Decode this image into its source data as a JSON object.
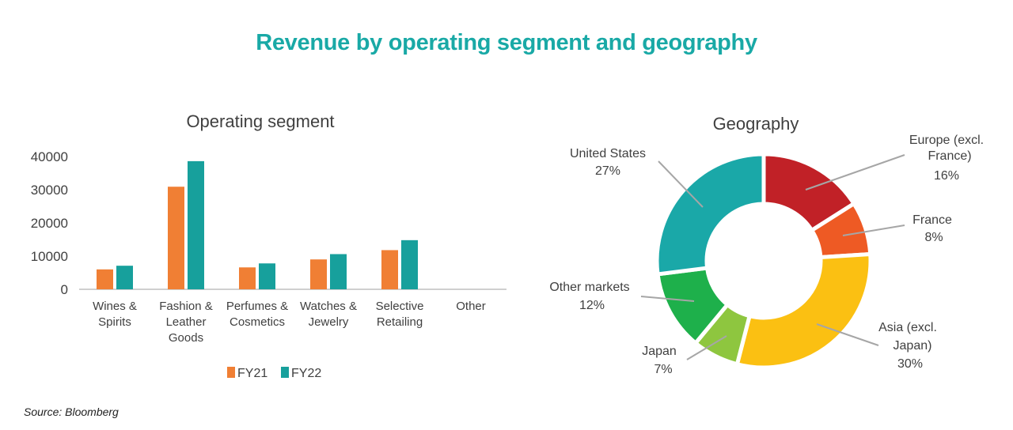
{
  "title": "Revenue by operating segment and geography",
  "source": "Source: Bloomberg",
  "colors": {
    "title": "#19a9a6",
    "fy21": "#f07f34",
    "fy22": "#17a09c"
  },
  "chart_data": [
    {
      "type": "bar",
      "title": "Operating segment",
      "categories": [
        [
          "Wines &",
          "Spirits"
        ],
        [
          "Fashion &",
          "Leather",
          "Goods"
        ],
        [
          "Perfumes &",
          "Cosmetics"
        ],
        [
          "Watches &",
          "Jewelry"
        ],
        [
          "Selective",
          "Retailing"
        ],
        [
          "Other"
        ]
      ],
      "series": [
        {
          "name": "FY21",
          "color": "#f07f34",
          "values": [
            6000,
            30900,
            6600,
            9000,
            11800,
            0
          ]
        },
        {
          "name": "FY22",
          "color": "#17a09c",
          "values": [
            7100,
            38600,
            7800,
            10600,
            14800,
            0
          ]
        }
      ],
      "yticks": [
        0,
        10000,
        20000,
        30000,
        40000
      ],
      "ylim": [
        0,
        40000
      ],
      "grid": false,
      "legend": "bottom"
    },
    {
      "type": "pie",
      "variant": "donut",
      "title": "Geography",
      "slices": [
        {
          "label": [
            "Europe (excl.",
            "France)"
          ],
          "value": 16,
          "pct": "16%",
          "color": "#c12127"
        },
        {
          "label": [
            "France"
          ],
          "value": 8,
          "pct": "8%",
          "color": "#ee5a24"
        },
        {
          "label": [
            "Asia (excl.",
            "Japan)"
          ],
          "value": 30,
          "pct": "30%",
          "color": "#fbc012"
        },
        {
          "label": [
            "Japan"
          ],
          "value": 7,
          "pct": "7%",
          "color": "#8ec63f"
        },
        {
          "label": [
            "Other markets"
          ],
          "value": 12,
          "pct": "12%",
          "color": "#1eb04b"
        },
        {
          "label": [
            "United States"
          ],
          "value": 27,
          "pct": "27%",
          "color": "#1aa8a8"
        }
      ]
    }
  ]
}
